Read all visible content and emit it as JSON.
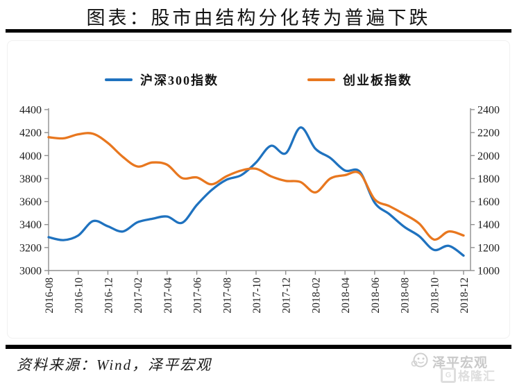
{
  "title": "图表：股市由结构分化转为普遍下跌",
  "legend": {
    "items": [
      {
        "label": "沪深300指数",
        "color": "#1F72BF"
      },
      {
        "label": "创业板指数",
        "color": "#E8771F"
      }
    ]
  },
  "footer": {
    "source": "资料来源：Wind，泽平宏观"
  },
  "watermark": {
    "brand": "泽平宏观",
    "publisher": "格隆汇",
    "publisher_logo_letter": "G",
    "color": "#cccccc"
  },
  "chart_data": {
    "type": "line",
    "title": "股市由结构分化转为普遍下跌",
    "x": [
      "2016-08",
      "2016-09",
      "2016-10",
      "2016-11",
      "2016-12",
      "2017-01",
      "2017-02",
      "2017-03",
      "2017-04",
      "2017-05",
      "2017-06",
      "2017-07",
      "2017-08",
      "2017-09",
      "2017-10",
      "2017-11",
      "2017-12",
      "2018-01",
      "2018-02",
      "2018-03",
      "2018-04",
      "2018-05",
      "2018-06",
      "2018-07",
      "2018-08",
      "2018-09",
      "2018-10",
      "2018-11",
      "2018-12"
    ],
    "x_tick_labels": [
      "2016-08",
      "2016-10",
      "2016-12",
      "2017-02",
      "2017-04",
      "2017-06",
      "2017-08",
      "2017-10",
      "2017-12",
      "2018-02",
      "2018-04",
      "2018-06",
      "2018-08",
      "2018-10",
      "2018-12"
    ],
    "series": [
      {
        "name": "沪深300指数",
        "axis": "left",
        "color": "#1F72BF",
        "values": [
          3290,
          3265,
          3305,
          3430,
          3385,
          3340,
          3420,
          3450,
          3470,
          3415,
          3570,
          3700,
          3790,
          3830,
          3940,
          4085,
          4020,
          4245,
          4060,
          3980,
          3870,
          3860,
          3590,
          3490,
          3380,
          3300,
          3180,
          3215,
          3130
        ]
      },
      {
        "name": "创业板指数",
        "axis": "right",
        "color": "#E8771F",
        "values": [
          2160,
          2150,
          2185,
          2190,
          2110,
          1990,
          1905,
          1940,
          1920,
          1805,
          1810,
          1750,
          1820,
          1870,
          1885,
          1820,
          1780,
          1770,
          1680,
          1800,
          1830,
          1845,
          1620,
          1560,
          1490,
          1410,
          1270,
          1340,
          1305
        ]
      }
    ],
    "axes": {
      "left": {
        "min": 3000,
        "max": 4400,
        "step": 200,
        "ticks": [
          4400,
          4200,
          4000,
          3800,
          3600,
          3400,
          3200,
          3000
        ]
      },
      "right": {
        "min": 1000,
        "max": 2400,
        "step": 200,
        "ticks": [
          2400,
          2200,
          2000,
          1800,
          1600,
          1400,
          1200,
          1000
        ]
      }
    },
    "grid": false,
    "legend_position": "top-center",
    "axis_color": "#8f8f8f"
  }
}
